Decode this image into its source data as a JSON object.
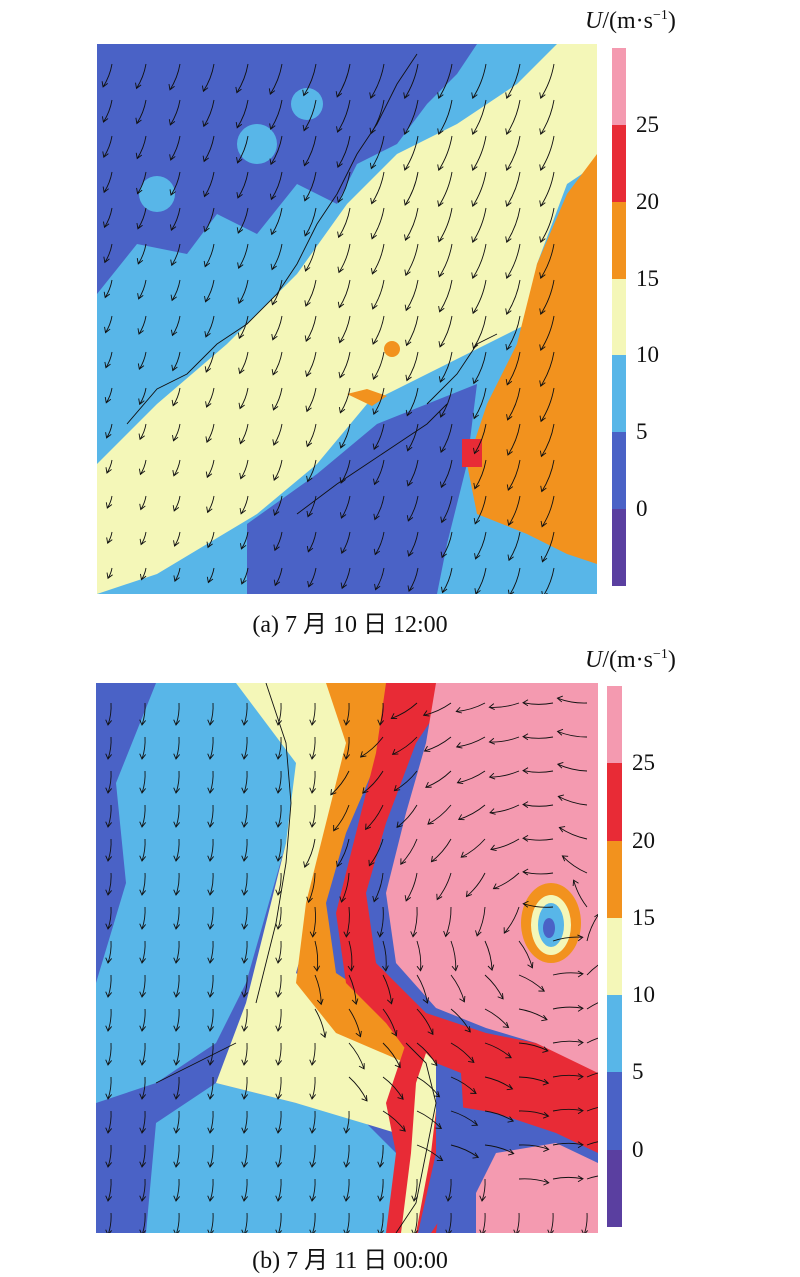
{
  "colorbar": {
    "unit_label_italic": "U",
    "unit_label_rest": "/(m·s",
    "unit_label_exp": "−1",
    "unit_label_close": ")",
    "ticks": [
      "25",
      "20",
      "15",
      "10",
      "5",
      "0"
    ],
    "colors": [
      "#5a3fa0",
      "#4a62c6",
      "#58b6e8",
      "#f4f7b8",
      "#f2921e",
      "#e82b36",
      "#f49ab0"
    ]
  },
  "panels": [
    {
      "caption": "(a) 7 月 10 日 12:00"
    },
    {
      "caption": "(b) 7 月 11 日 00:00"
    }
  ]
}
